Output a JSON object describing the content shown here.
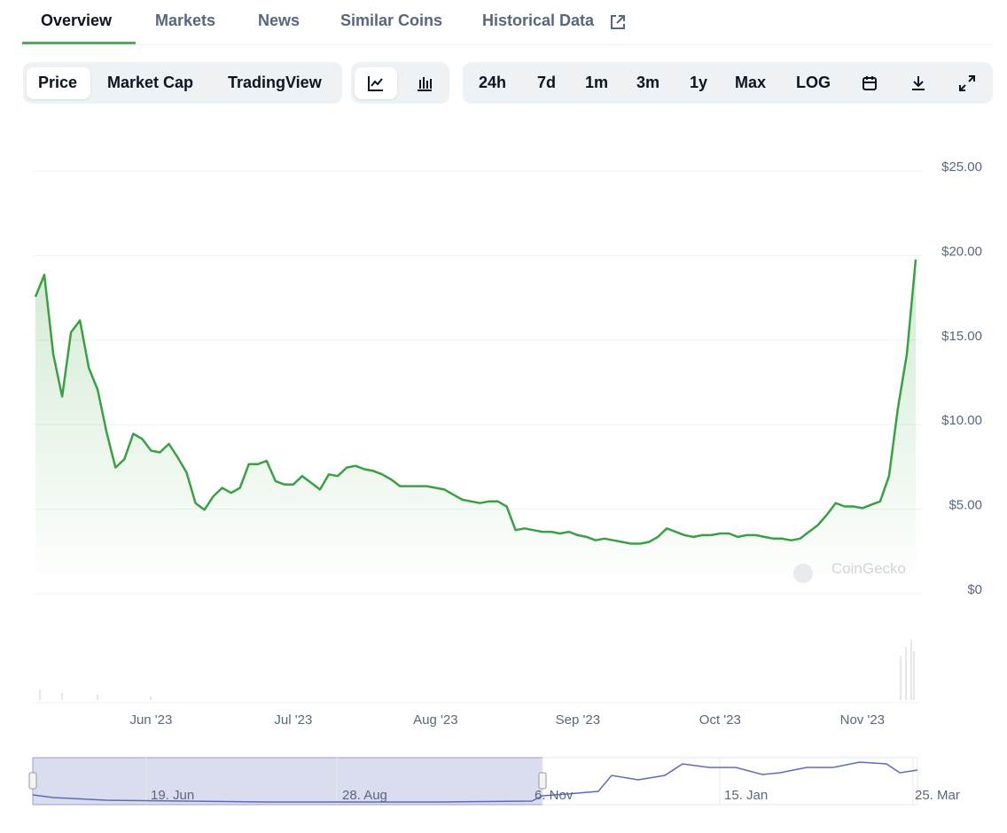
{
  "tabs": [
    "Overview",
    "Markets",
    "News",
    "Similar Coins",
    "Historical Data"
  ],
  "chart_modes": [
    "Price",
    "Market Cap",
    "TradingView"
  ],
  "ranges": [
    "24h",
    "7d",
    "1m",
    "3m",
    "1y",
    "Max",
    "LOG"
  ],
  "watermark": "CoinGecko",
  "navigator": {
    "labels": [
      "19. Jun",
      "28. Aug",
      "6. Nov",
      "15. Jan",
      "25. Mar"
    ]
  },
  "chart_data": {
    "type": "line",
    "color": "#3c9f46",
    "categories": [
      null,
      null,
      null,
      null,
      null,
      null,
      null,
      null,
      null,
      null,
      null,
      null,
      null,
      "Jun '23",
      null,
      null,
      null,
      null,
      null,
      null,
      null,
      null,
      null,
      null,
      null,
      null,
      null,
      null,
      null,
      "Jul '23",
      null,
      null,
      null,
      null,
      null,
      null,
      null,
      null,
      null,
      null,
      null,
      null,
      null,
      null,
      null,
      "Aug '23",
      null,
      null,
      null,
      null,
      null,
      null,
      null,
      null,
      null,
      null,
      null,
      null,
      null,
      null,
      null,
      "Sep '23",
      null,
      null,
      null,
      null,
      null,
      null,
      null,
      null,
      null,
      null,
      null,
      null,
      null,
      null,
      null,
      "Oct '23",
      null,
      null,
      null,
      null,
      null,
      null,
      null,
      null,
      null,
      null,
      null,
      null,
      null,
      null,
      null,
      "Nov '23",
      null,
      null,
      null,
      null,
      null,
      null
    ],
    "values": [
      17.3,
      18.6,
      13.9,
      11.4,
      15.2,
      15.9,
      13.1,
      11.8,
      9.3,
      7.2,
      7.7,
      9.2,
      8.9,
      8.2,
      8.1,
      8.6,
      7.8,
      6.9,
      5.1,
      4.7,
      5.5,
      6.0,
      5.7,
      6.0,
      7.4,
      7.4,
      7.6,
      6.4,
      6.2,
      6.2,
      6.7,
      6.3,
      5.9,
      6.8,
      6.7,
      7.2,
      7.3,
      7.1,
      7.0,
      6.8,
      6.5,
      6.1,
      6.1,
      6.1,
      6.1,
      6.0,
      5.9,
      5.6,
      5.3,
      5.2,
      5.1,
      5.2,
      5.2,
      4.9,
      3.5,
      3.6,
      3.5,
      3.4,
      3.4,
      3.3,
      3.4,
      3.2,
      3.1,
      2.9,
      3.0,
      2.9,
      2.8,
      2.7,
      2.7,
      2.8,
      3.1,
      3.6,
      3.4,
      3.2,
      3.1,
      3.2,
      3.2,
      3.3,
      3.3,
      3.1,
      3.2,
      3.2,
      3.1,
      3.0,
      3.0,
      2.9,
      3.0,
      3.4,
      3.8,
      4.4,
      5.1,
      4.9,
      4.9,
      4.8,
      5.0,
      5.2,
      6.7,
      10.7,
      13.9,
      19.5
    ],
    "ylim": [
      0,
      25
    ],
    "yticks": [
      {
        "value": 0,
        "label": "$0"
      },
      {
        "value": 5,
        "label": "$5.00"
      },
      {
        "value": 10,
        "label": "$10.00"
      },
      {
        "value": 15,
        "label": "$15.00"
      },
      {
        "value": 20,
        "label": "$20.00"
      },
      {
        "value": 25,
        "label": "$25.00"
      }
    ],
    "grid": true
  }
}
